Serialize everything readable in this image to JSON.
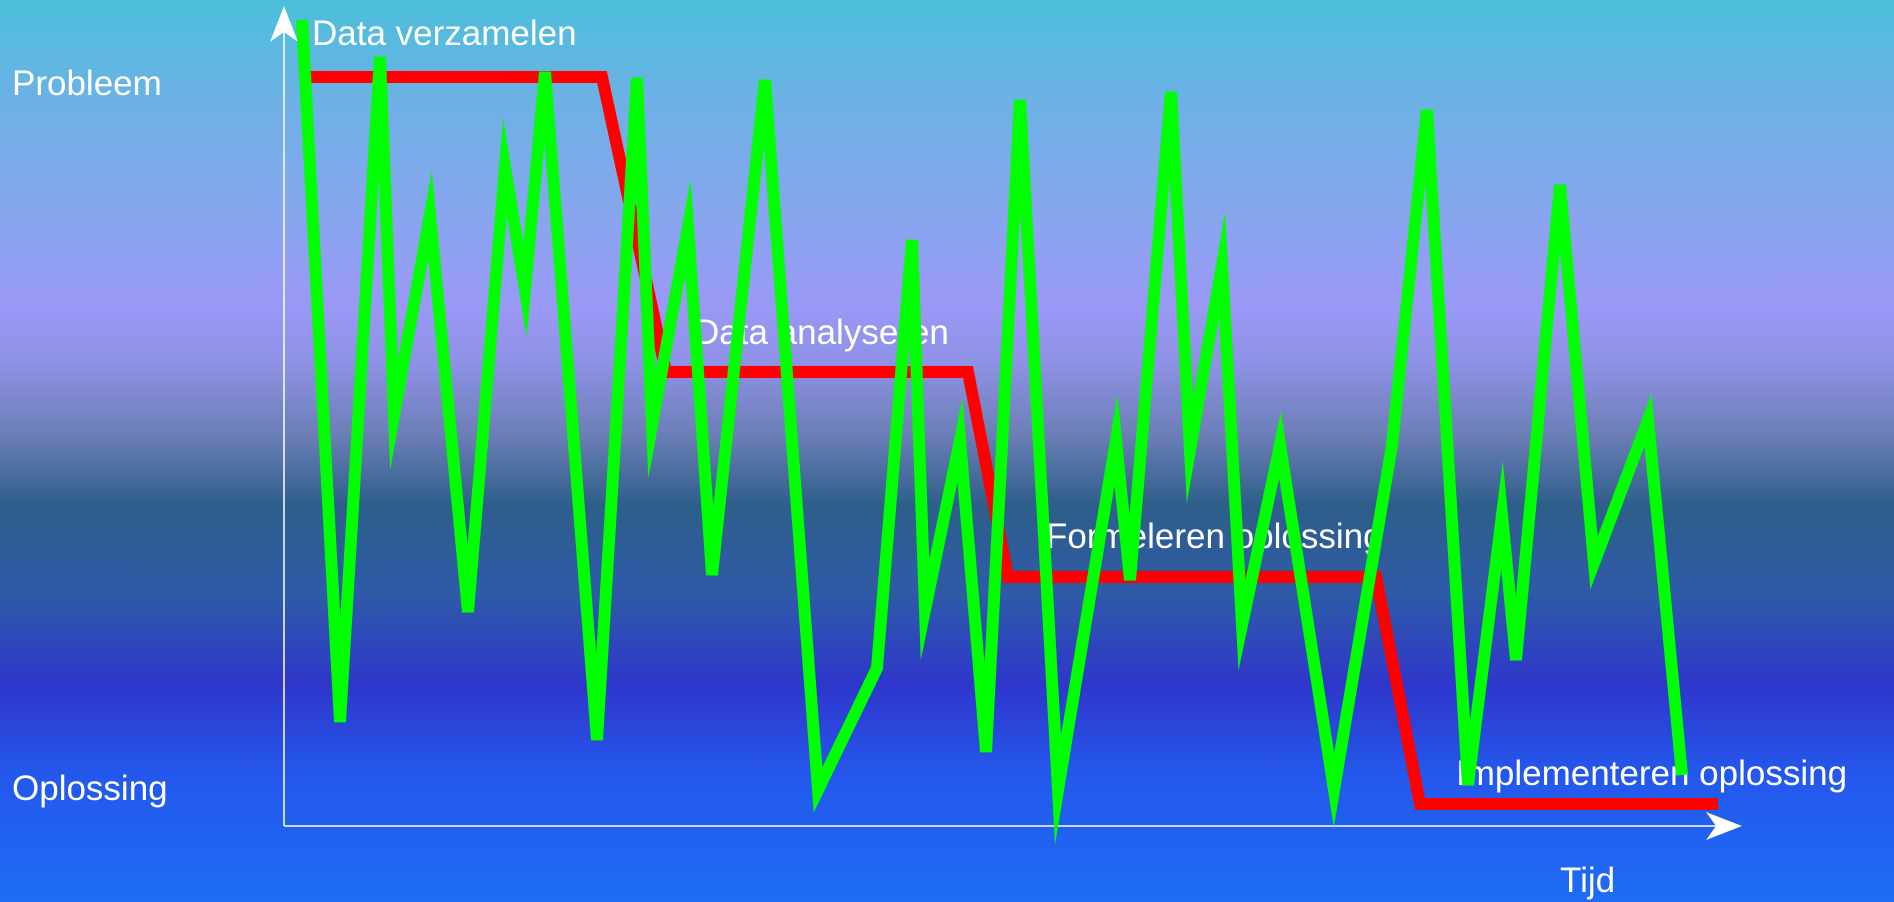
{
  "labels": {
    "problem": "Probleem",
    "solution": "Oplossing",
    "time": "Tijd"
  },
  "steps": [
    "Data verzamelen",
    "Data analyseren",
    "Formeleren oplossing",
    "Implementeren oplossing"
  ],
  "colors": {
    "ideal_path": "#ff0000",
    "actual_path": "#00ff00",
    "axes": "#ffffff",
    "text": "#ffffff"
  }
}
